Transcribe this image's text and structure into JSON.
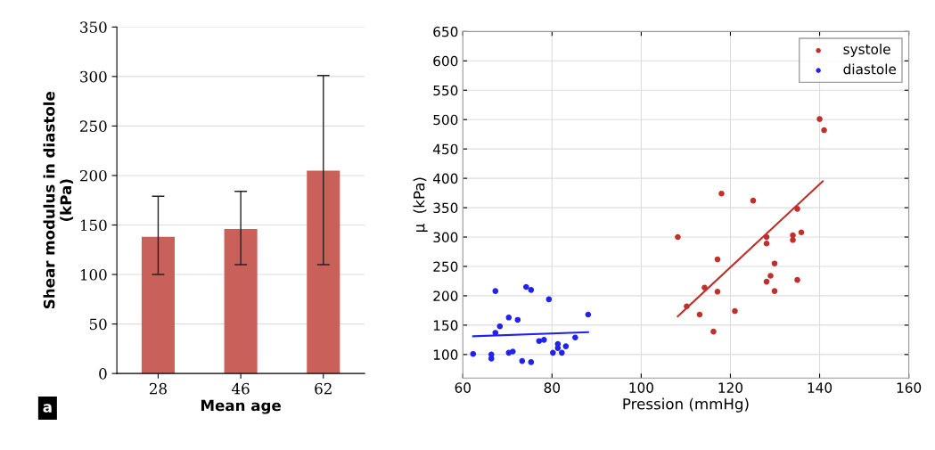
{
  "chart_data": [
    {
      "type": "bar",
      "categories": [
        "28",
        "46",
        "62"
      ],
      "xlabel": "Mean age",
      "ylabel": "Shear modulus in diastole\n(kPa)",
      "series": [
        {
          "color": "#c9605a",
          "values": [
            138,
            146,
            205
          ],
          "errors": [
            [
              100,
              179
            ],
            [
              110,
              184
            ],
            [
              110,
              301
            ]
          ]
        }
      ],
      "ylim": [
        0,
        350
      ],
      "yticks": [
        0,
        50,
        100,
        150,
        200,
        250,
        300,
        350
      ],
      "grid": "y",
      "annotations": [
        "a"
      ]
    },
    {
      "type": "scatter",
      "xlabel": "Pression (mmHg)",
      "ylabel": "μ  (kPa)",
      "xlim": [
        60,
        160
      ],
      "xticks": [
        60,
        80,
        100,
        120,
        140,
        160
      ],
      "ylim": [
        60,
        650
      ],
      "yticks": [
        100,
        150,
        200,
        250,
        300,
        350,
        400,
        450,
        500,
        550,
        600,
        650
      ],
      "grid": true,
      "legend": "top right",
      "series": [
        {
          "name": "systole",
          "color": "#c0302b",
          "marker": "circle",
          "x": [
            108.2,
            110.2,
            113.1,
            114.2,
            116.2,
            117.1,
            117.1,
            118.0,
            121.0,
            125.1,
            128.1,
            128.1,
            128.1,
            129.0,
            129.9,
            129.9,
            134.0,
            134.0,
            135.0,
            135.0,
            135.9,
            140.0,
            141.0
          ],
          "values": [
            300,
            182,
            168,
            214,
            139,
            262,
            207,
            374,
            174,
            362,
            300,
            289,
            224,
            234,
            255,
            208,
            303,
            295,
            348,
            227,
            308,
            501,
            482
          ]
        },
        {
          "name": "diastole",
          "color": "#2222ee",
          "marker": "circle",
          "x": [
            62.3,
            66.4,
            66.4,
            67.3,
            67.3,
            68.3,
            70.3,
            70.3,
            71.2,
            72.3,
            73.3,
            74.2,
            75.3,
            75.3,
            77.1,
            78.2,
            79.3,
            80.2,
            81.3,
            81.3,
            82.2,
            83.1,
            85.2,
            88.1
          ],
          "values": [
            101,
            100,
            93,
            208,
            137,
            148,
            163,
            103,
            105,
            159,
            89,
            215,
            210,
            87,
            123,
            125,
            194,
            103,
            118,
            111,
            103,
            114,
            129,
            168
          ]
        },
        {
          "type": "line",
          "marker": "none",
          "color": "#c0302b",
          "x": [
            108.2,
            140.7
          ],
          "values": [
            165,
            395
          ]
        },
        {
          "type": "line",
          "marker": "none",
          "color": "#2222ee",
          "x": [
            62.3,
            88.1
          ],
          "values": [
            131,
            138
          ]
        }
      ]
    }
  ]
}
